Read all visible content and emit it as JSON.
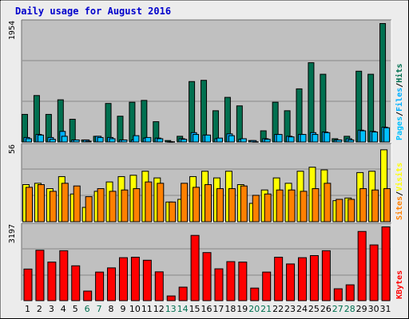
{
  "title": "Daily usage for August 2016",
  "colors": {
    "background": "#ececec",
    "panel": "#c0c0c0",
    "title": "#0000cc",
    "hits": "#007050",
    "files": "#00b0ff",
    "pages": "#00c0ff",
    "visits": "#ffff00",
    "sites": "#ff8000",
    "kbytes": "#ff0000",
    "weekend_day": "#007050",
    "weekday": "#000000"
  },
  "chart_data": [
    {
      "type": "bar",
      "name": "hits-files-pages",
      "x": [
        1,
        2,
        3,
        4,
        5,
        6,
        7,
        8,
        9,
        10,
        11,
        12,
        13,
        14,
        15,
        16,
        17,
        18,
        19,
        20,
        21,
        22,
        23,
        24,
        25,
        26,
        27,
        28,
        29,
        30,
        31
      ],
      "ymax_label": "1954",
      "ylim": [
        0,
        1954
      ],
      "legend": [
        "Pages",
        "/",
        "Files",
        "/",
        "Hits"
      ],
      "series": [
        {
          "name": "Hits",
          "values": [
            460,
            770,
            460,
            700,
            380,
            40,
            100,
            640,
            430,
            660,
            690,
            340,
            30,
            100,
            1000,
            1020,
            520,
            740,
            600,
            30,
            190,
            660,
            520,
            880,
            1310,
            1120,
            60,
            100,
            1170,
            1120,
            1954
          ]
        },
        {
          "name": "Files",
          "values": [
            80,
            130,
            80,
            180,
            40,
            40,
            100,
            80,
            40,
            40,
            70,
            70,
            10,
            60,
            160,
            120,
            60,
            140,
            50,
            30,
            60,
            130,
            100,
            130,
            160,
            170,
            40,
            60,
            200,
            180,
            250
          ]
        },
        {
          "name": "Pages",
          "values": [
            60,
            120,
            50,
            100,
            40,
            20,
            80,
            60,
            40,
            110,
            80,
            60,
            10,
            50,
            130,
            120,
            70,
            110,
            60,
            10,
            50,
            130,
            90,
            130,
            130,
            160,
            40,
            40,
            190,
            170,
            240
          ]
        }
      ]
    },
    {
      "type": "bar",
      "name": "visits-sites",
      "x": [
        1,
        2,
        3,
        4,
        5,
        6,
        7,
        8,
        9,
        10,
        11,
        12,
        13,
        14,
        15,
        16,
        17,
        18,
        19,
        20,
        21,
        22,
        23,
        24,
        25,
        26,
        27,
        28,
        29,
        30,
        31
      ],
      "ymax_label": "56",
      "ylim": [
        0,
        56
      ],
      "legend": [
        "Sites",
        "/",
        "Visits"
      ],
      "series": [
        {
          "name": "Visits",
          "values": [
            28,
            29,
            25,
            34,
            21,
            11,
            23,
            30,
            34,
            35,
            38,
            33,
            15,
            17,
            34,
            38,
            33,
            38,
            28,
            14,
            24,
            33,
            29,
            38,
            41,
            39,
            16,
            18,
            37,
            38,
            54
          ]
        },
        {
          "name": "Sites",
          "values": [
            26,
            28,
            23,
            29,
            27,
            19,
            25,
            23,
            24,
            25,
            30,
            29,
            15,
            29,
            26,
            28,
            25,
            25,
            27,
            20,
            21,
            24,
            24,
            23,
            25,
            29,
            17,
            17,
            25,
            24,
            25
          ]
        }
      ]
    },
    {
      "type": "bar",
      "name": "kbytes",
      "x": [
        1,
        2,
        3,
        4,
        5,
        6,
        7,
        8,
        9,
        10,
        11,
        12,
        13,
        14,
        15,
        16,
        17,
        18,
        19,
        20,
        21,
        22,
        23,
        24,
        25,
        26,
        27,
        28,
        29,
        30,
        31
      ],
      "ymax_label": "3197",
      "ylim": [
        0,
        3197
      ],
      "legend": [
        "KBytes"
      ],
      "series": [
        {
          "name": "KBytes",
          "values": [
            1380,
            2190,
            1680,
            2170,
            1520,
            430,
            1250,
            1430,
            1870,
            1890,
            1760,
            1260,
            220,
            600,
            2830,
            2090,
            1390,
            1700,
            1680,
            560,
            1250,
            1890,
            1600,
            1870,
            1960,
            2170,
            530,
            700,
            3000,
            2420,
            3197
          ]
        }
      ]
    }
  ]
}
